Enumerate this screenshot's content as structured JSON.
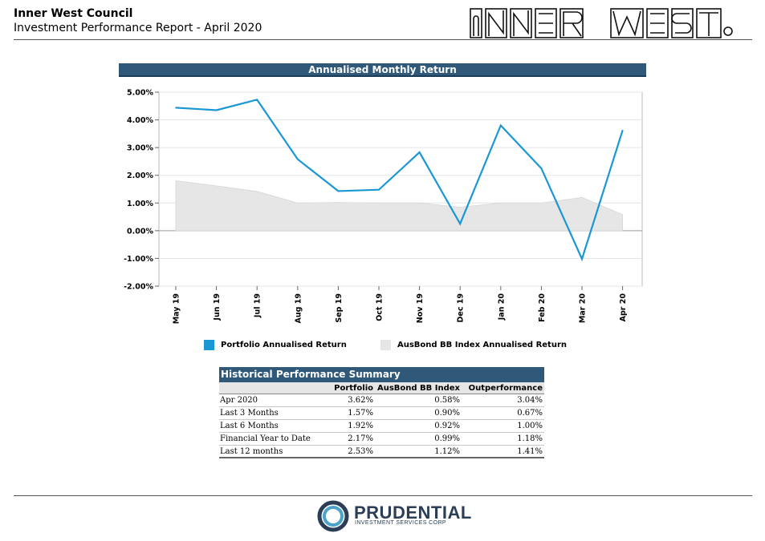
{
  "header": {
    "title": "Inner West Council",
    "subtitle": "Investment Performance Report - April 2020",
    "logo_text": "INNER WEST"
  },
  "chart_data": {
    "type": "line",
    "title": "Annualised Monthly Return",
    "categories": [
      "May 19",
      "Jun 19",
      "Jul 19",
      "Aug 19",
      "Sep 19",
      "Oct 19",
      "Nov 19",
      "Dec 19",
      "Jan 20",
      "Feb 20",
      "Mar 20",
      "Apr 20"
    ],
    "series": [
      {
        "name": "Portfolio Annualised Return",
        "kind": "line",
        "color": "#1a97d5",
        "values": [
          4.44,
          4.35,
          4.73,
          2.58,
          1.43,
          1.48,
          2.83,
          0.25,
          3.8,
          2.25,
          -1.02,
          3.62
        ]
      },
      {
        "name": "AusBond BB Index Annualised Return",
        "kind": "area",
        "color": "#e6e6e6",
        "values": [
          1.8,
          1.62,
          1.42,
          1.0,
          1.02,
          1.0,
          1.0,
          0.85,
          1.0,
          1.0,
          1.2,
          0.58
        ]
      }
    ],
    "yticks": [
      "5.00%",
      "4.00%",
      "3.00%",
      "2.00%",
      "1.00%",
      "0.00%",
      "-1.00%",
      "-2.00%"
    ],
    "ylim": [
      -2,
      5
    ],
    "grid": true,
    "legend_position": "bottom"
  },
  "summary": {
    "title": "Historical Performance Summary",
    "columns": [
      "",
      "Portfolio",
      "AusBond BB Index",
      "Outperformance"
    ],
    "rows": [
      [
        "Apr 2020",
        "3.62%",
        "0.58%",
        "3.04%"
      ],
      [
        "Last 3 Months",
        "1.57%",
        "0.90%",
        "0.67%"
      ],
      [
        "Last 6 Months",
        "1.92%",
        "0.92%",
        "1.00%"
      ],
      [
        "Financial Year to Date",
        "2.17%",
        "0.99%",
        "1.18%"
      ],
      [
        "Last 12 months",
        "2.53%",
        "1.12%",
        "1.41%"
      ]
    ]
  },
  "footer": {
    "company": "PRUDENTIAL",
    "company_sub": "INVESTMENT SERVICES CORP"
  }
}
